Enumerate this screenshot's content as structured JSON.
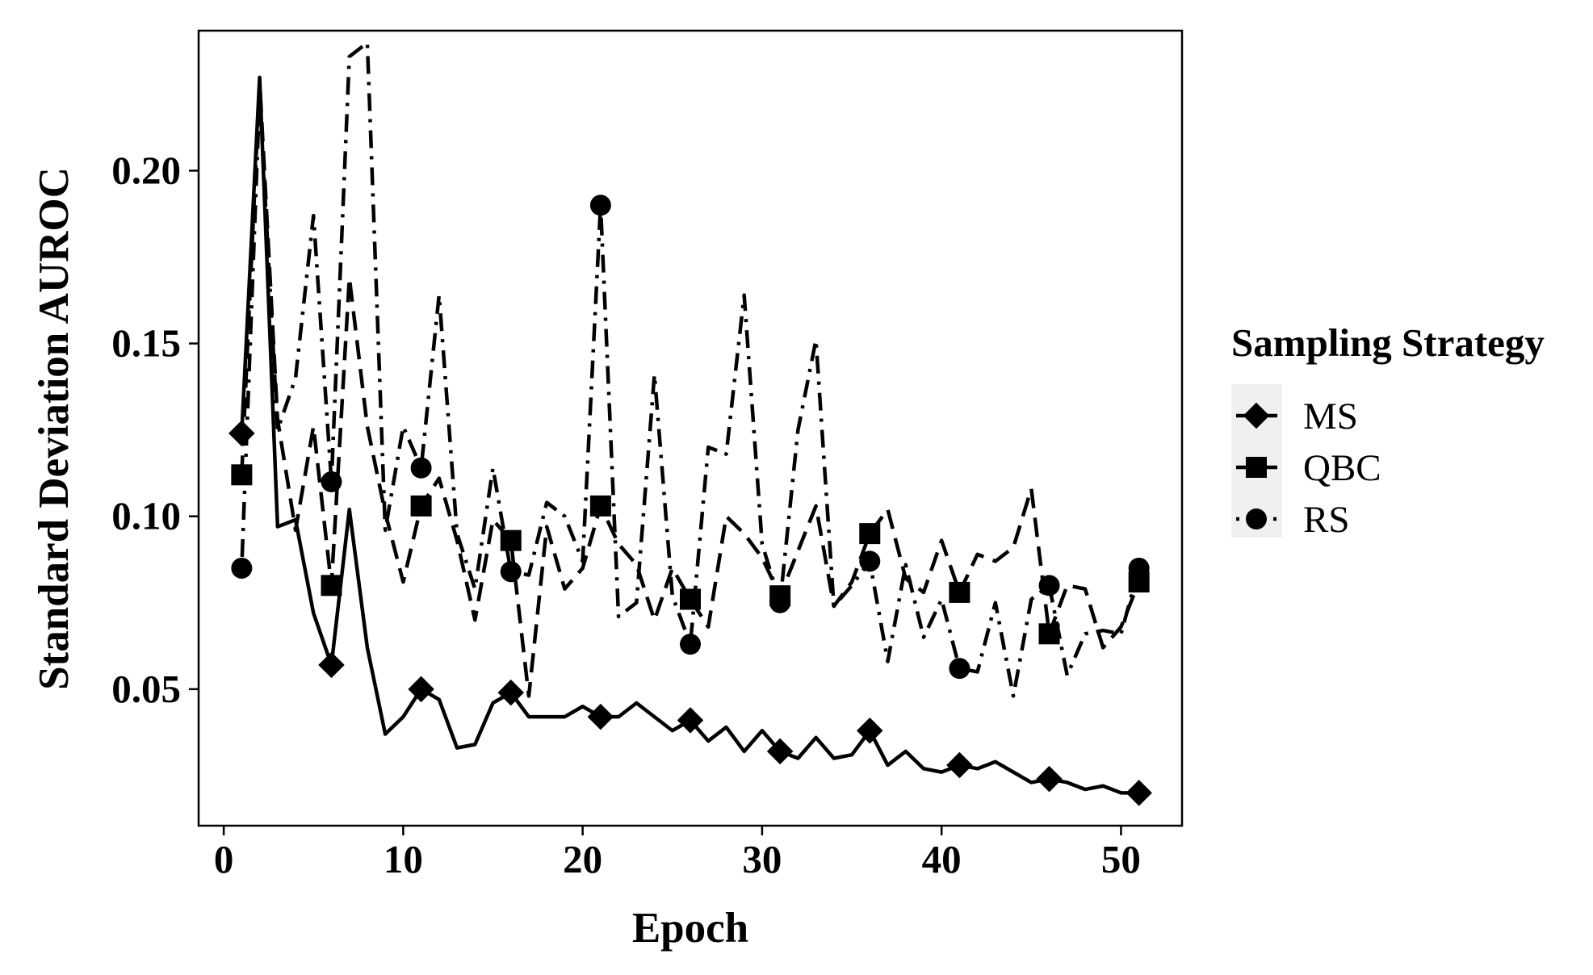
{
  "chart_data": {
    "type": "line",
    "xlabel": "Epoch",
    "ylabel": "Standard Deviation AUROC",
    "xlim": [
      -1.4,
      53.4
    ],
    "ylim": [
      0.0105,
      0.2405
    ],
    "x_ticks": [
      0,
      10,
      20,
      30,
      40,
      50
    ],
    "x_tick_labels": [
      "0",
      "10",
      "20",
      "30",
      "40",
      "50"
    ],
    "y_ticks": [
      0.05,
      0.1,
      0.15,
      0.2
    ],
    "y_tick_labels": [
      "0.05",
      "0.10",
      "0.15",
      "0.20"
    ],
    "grid": false,
    "legend": {
      "title": "Sampling Strategy",
      "position": "right",
      "background": "#f0f0f0"
    },
    "marker_every": 5,
    "x": [
      1,
      2,
      3,
      4,
      5,
      6,
      7,
      8,
      9,
      10,
      11,
      12,
      13,
      14,
      15,
      16,
      17,
      18,
      19,
      20,
      21,
      22,
      23,
      24,
      25,
      26,
      27,
      28,
      29,
      30,
      31,
      32,
      33,
      34,
      35,
      36,
      37,
      38,
      39,
      40,
      41,
      42,
      43,
      44,
      45,
      46,
      47,
      48,
      49,
      50,
      51
    ],
    "series": [
      {
        "name": "MS",
        "line_style": "solid",
        "marker": "diamond",
        "color": "#000000",
        "values": [
          0.124,
          0.227,
          0.097,
          0.099,
          0.072,
          0.057,
          0.102,
          0.062,
          0.037,
          0.042,
          0.05,
          0.047,
          0.033,
          0.034,
          0.046,
          0.049,
          0.042,
          0.042,
          0.042,
          0.045,
          0.042,
          0.042,
          0.046,
          0.042,
          0.038,
          0.041,
          0.035,
          0.039,
          0.032,
          0.038,
          0.032,
          0.03,
          0.036,
          0.03,
          0.031,
          0.038,
          0.028,
          0.032,
          0.027,
          0.026,
          0.028,
          0.027,
          0.029,
          0.026,
          0.023,
          0.024,
          0.023,
          0.021,
          0.022,
          0.02,
          0.02
        ]
      },
      {
        "name": "QBC",
        "line_style": "dashed",
        "marker": "square",
        "color": "#000000",
        "values": [
          0.112,
          0.226,
          0.128,
          0.096,
          0.126,
          0.08,
          0.169,
          0.126,
          0.101,
          0.081,
          0.103,
          0.111,
          0.093,
          0.07,
          0.099,
          0.093,
          0.048,
          0.097,
          0.079,
          0.085,
          0.103,
          0.092,
          0.086,
          0.07,
          0.085,
          0.076,
          0.068,
          0.1,
          0.095,
          0.088,
          0.077,
          0.09,
          0.103,
          0.074,
          0.081,
          0.095,
          0.102,
          0.082,
          0.078,
          0.093,
          0.078,
          0.089,
          0.087,
          0.091,
          0.108,
          0.066,
          0.08,
          0.079,
          0.062,
          0.068,
          0.081
        ]
      },
      {
        "name": "RS",
        "line_style": "dotdash",
        "marker": "circle",
        "color": "#000000",
        "values": [
          0.085,
          0.222,
          0.125,
          0.14,
          0.187,
          0.11,
          0.233,
          0.237,
          0.096,
          0.126,
          0.114,
          0.164,
          0.095,
          0.079,
          0.114,
          0.084,
          0.083,
          0.104,
          0.1,
          0.087,
          0.19,
          0.071,
          0.075,
          0.141,
          0.077,
          0.063,
          0.12,
          0.118,
          0.164,
          0.092,
          0.075,
          0.125,
          0.151,
          0.074,
          0.08,
          0.087,
          0.058,
          0.086,
          0.065,
          0.076,
          0.056,
          0.055,
          0.075,
          0.048,
          0.076,
          0.08,
          0.054,
          0.066,
          0.067,
          0.066,
          0.085
        ]
      }
    ]
  }
}
